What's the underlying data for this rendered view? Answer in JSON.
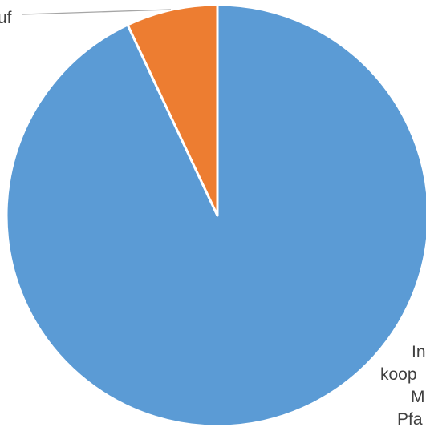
{
  "chart_data": {
    "type": "pie",
    "title": "",
    "start_angle_deg": 0,
    "direction": "clockwise",
    "slices": [
      {
        "label_lines": [
          "In",
          "koop",
          "M",
          "Pfa"
        ],
        "value": 93,
        "color": "#5b9bd5"
      },
      {
        "label_lines": [
          "uf"
        ],
        "value": 7,
        "color": "#ed7d31"
      }
    ],
    "leader_line_color": "#a6a6a6",
    "slice_border_color": "#ffffff"
  }
}
